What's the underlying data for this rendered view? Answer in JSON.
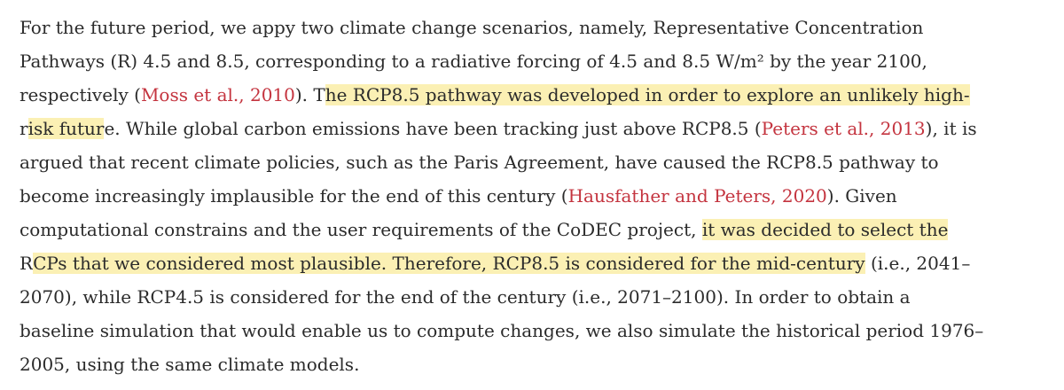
{
  "paragraph": {
    "lines": [
      [
        {
          "text": "For the future period, we appy two climate change scenarios, namely, Representative Concentration",
          "style": "plain"
        }
      ],
      [
        {
          "text": "Pathways (R) 4.5 and 8.5, corresponding to a radiative forcing of 4.5 and 8.5 W/m² by the year 2100,",
          "style": "plain"
        }
      ],
      [
        {
          "text": "respectively (",
          "style": "plain"
        },
        {
          "text": "Moss et al., 2010",
          "style": "citation"
        },
        {
          "text": "). T",
          "style": "plain"
        },
        {
          "text": "he RCP8.5 pathway was developed in order to explore an unlikely high-",
          "style": "highlight"
        }
      ],
      [
        {
          "text": "r",
          "style": "plain"
        },
        {
          "text": "isk futur",
          "style": "highlight"
        },
        {
          "text": "e. While global carbon emissions have been tracking just above RCP8.5 (",
          "style": "plain"
        },
        {
          "text": "Peters et al., 2013",
          "style": "citation"
        },
        {
          "text": "), it is",
          "style": "plain"
        }
      ],
      [
        {
          "text": "argued that recent climate policies, such as the Paris Agreement, have caused the RCP8.5 pathway to",
          "style": "plain"
        }
      ],
      [
        {
          "text": "become increasingly implausible for the end of this century (",
          "style": "plain"
        },
        {
          "text": "Hausfather and Peters, 2020",
          "style": "citation"
        },
        {
          "text": "). Given",
          "style": "plain"
        }
      ],
      [
        {
          "text": "computational constrains and the user requirements of the CoDEC project, ",
          "style": "plain"
        },
        {
          "text": "it was decided to select the",
          "style": "highlight"
        }
      ],
      [
        {
          "text": "R",
          "style": "plain"
        },
        {
          "text": "CPs that we considered most plausible. Therefore, RCP8.5 is considered for the mid-century",
          "style": "highlight"
        },
        {
          "text": " (i.e., 2041–",
          "style": "plain"
        }
      ],
      [
        {
          "text": "2070), while RCP4.5 is considered for the end of the century (i.e., 2071–2100). In order to obtain a",
          "style": "plain"
        }
      ],
      [
        {
          "text": "baseline simulation that would enable us to compute changes, we also simulate the historical period 1976–",
          "style": "plain"
        }
      ],
      [
        {
          "text": "2005, using the same climate models.",
          "style": "plain"
        }
      ]
    ]
  }
}
